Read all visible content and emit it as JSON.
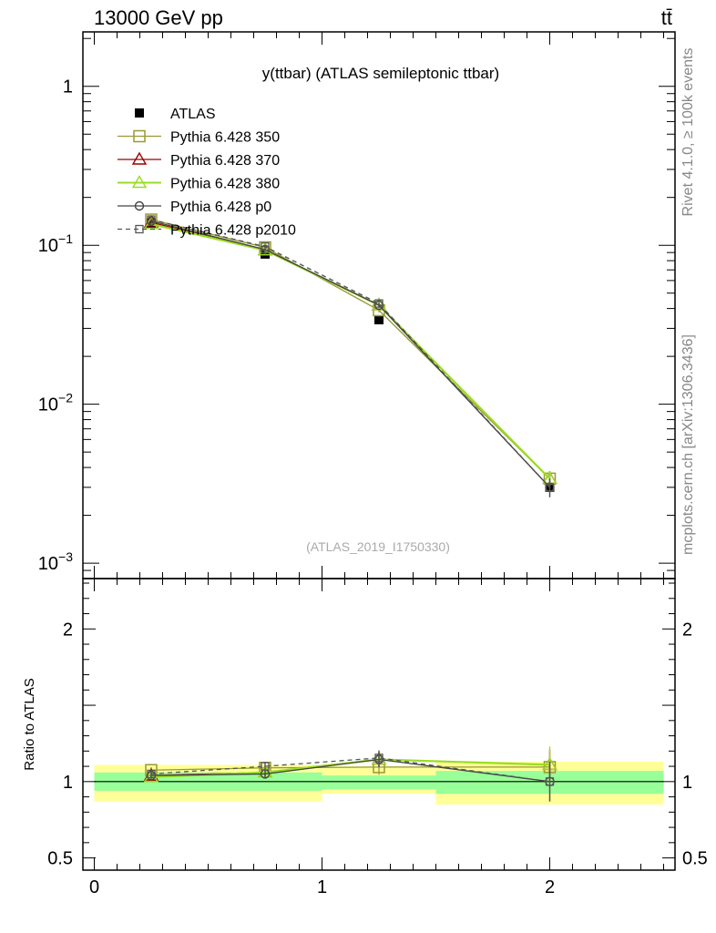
{
  "header": {
    "left": "13000 GeV pp",
    "right": "tt̄"
  },
  "side_labels": {
    "rivet": "Rivet 4.1.0, ≥ 100k events",
    "source": "mcplots.cern.ch [arXiv:1306.3436]"
  },
  "colors": {
    "atlas": "#000000",
    "p350": "#999933",
    "p370": "#990000",
    "p380": "#99dd22",
    "p0": "#444444",
    "p2010": "#555555",
    "band_inner": "#99ff99",
    "band_outer": "#ffff99"
  },
  "chart_data": [
    {
      "type": "line",
      "title": "y(ttbar) (ATLAS semileptonic ttbar)",
      "watermark": "(ATLAS_2019_I1750330)",
      "yscale": "log",
      "xlim": [
        -0.05,
        2.55
      ],
      "ylim": [
        0.0008,
        2.2
      ],
      "legend_position": "top-left",
      "yticks": [
        {
          "value": 1,
          "base": "1",
          "exp": ""
        },
        {
          "value": 0.1,
          "base": "10",
          "exp": "−1"
        },
        {
          "value": 0.01,
          "base": "10",
          "exp": "−2"
        },
        {
          "value": 0.001,
          "base": "10",
          "exp": "−3"
        }
      ],
      "x": [
        0.25,
        0.75,
        1.25,
        2.0
      ],
      "x_bins": [
        [
          0,
          0.5
        ],
        [
          0.5,
          1.0
        ],
        [
          1.0,
          1.5
        ],
        [
          1.5,
          2.5
        ]
      ],
      "series": [
        {
          "name": "ATLAS",
          "key": "atlas",
          "marker": "filled-square",
          "values": [
            0.138,
            0.088,
            0.034,
            0.003
          ],
          "err": [
            0.0,
            0.0,
            0.0,
            0.0
          ]
        },
        {
          "name": "Pythia 6.428 350",
          "key": "p350",
          "marker": "open-square",
          "line": "solid",
          "values": [
            0.145,
            0.097,
            0.039,
            0.0034
          ],
          "err": [
            0.003,
            0.002,
            0.0012,
            0.0004
          ]
        },
        {
          "name": "Pythia 6.428 370",
          "key": "p370",
          "marker": "open-triangle",
          "line": "solid",
          "values": [
            0.139,
            0.093,
            0.042,
            0.0034
          ],
          "err": [
            0.003,
            0.002,
            0.0012,
            0.0004
          ]
        },
        {
          "name": "Pythia 6.428 380",
          "key": "p380",
          "marker": "open-triangle",
          "line": "solid",
          "values": [
            0.136,
            0.093,
            0.042,
            0.0034
          ],
          "err": [
            0.003,
            0.002,
            0.0012,
            0.0004
          ]
        },
        {
          "name": "Pythia 6.428 p0",
          "key": "p0",
          "marker": "open-circle",
          "line": "solid",
          "values": [
            0.142,
            0.094,
            0.042,
            0.003
          ],
          "err": [
            0.003,
            0.002,
            0.0012,
            0.0004
          ]
        },
        {
          "name": "Pythia 6.428 p2010",
          "key": "p2010",
          "marker": "open-square-small",
          "line": "dashed",
          "values": [
            0.145,
            0.098,
            0.043,
            0.003
          ],
          "err": [
            0.003,
            0.002,
            0.0012,
            0.0004
          ]
        }
      ]
    },
    {
      "type": "line",
      "ylabel": "Ratio to ATLAS",
      "yscale": "linear",
      "xlim": [
        -0.05,
        2.55
      ],
      "ylim": [
        0.42,
        2.33
      ],
      "yticks": [
        {
          "value": 2,
          "label": "2"
        },
        {
          "value": 1,
          "label": "1"
        },
        {
          "value": 0.5,
          "label": "0.5"
        }
      ],
      "xticks": [
        {
          "value": 0,
          "label": "0"
        },
        {
          "value": 1,
          "label": "1"
        },
        {
          "value": 2,
          "label": "2"
        }
      ],
      "reference_line": 1,
      "bands": [
        {
          "x": [
            0,
            1.0
          ],
          "inner": [
            0.94,
            1.06
          ],
          "outer": [
            0.87,
            1.11
          ]
        },
        {
          "x": [
            1.0,
            1.5
          ],
          "inner": [
            0.95,
            1.04
          ],
          "outer": [
            0.92,
            1.1
          ]
        },
        {
          "x": [
            1.5,
            2.5
          ],
          "inner": [
            0.92,
            1.07
          ],
          "outer": [
            0.85,
            1.13
          ]
        }
      ],
      "x": [
        0.25,
        0.75,
        1.25,
        2.0
      ],
      "series": [
        {
          "key": "p350",
          "marker": "open-square",
          "line": "solid",
          "values": [
            1.075,
            1.09,
            1.095,
            1.095
          ],
          "err": [
            0.02,
            0.03,
            0.05,
            0.1
          ]
        },
        {
          "key": "p370",
          "marker": "open-triangle",
          "line": "solid",
          "values": [
            1.04,
            1.06,
            1.145,
            1.11
          ],
          "err": [
            0.02,
            0.03,
            0.05,
            0.1
          ]
        },
        {
          "key": "p380",
          "marker": "open-triangle",
          "line": "solid",
          "values": [
            1.03,
            1.06,
            1.145,
            1.11
          ],
          "err": [
            0.02,
            0.03,
            0.05,
            0.12
          ]
        },
        {
          "key": "p0",
          "marker": "open-circle",
          "line": "solid",
          "values": [
            1.04,
            1.05,
            1.145,
            1.0
          ],
          "err": [
            0.02,
            0.03,
            0.05,
            0.13
          ]
        },
        {
          "key": "p2010",
          "marker": "open-square-small",
          "line": "dashed",
          "values": [
            1.05,
            1.1,
            1.155,
            1.0
          ],
          "err": [
            0.02,
            0.03,
            0.05,
            0.13
          ]
        }
      ]
    }
  ]
}
